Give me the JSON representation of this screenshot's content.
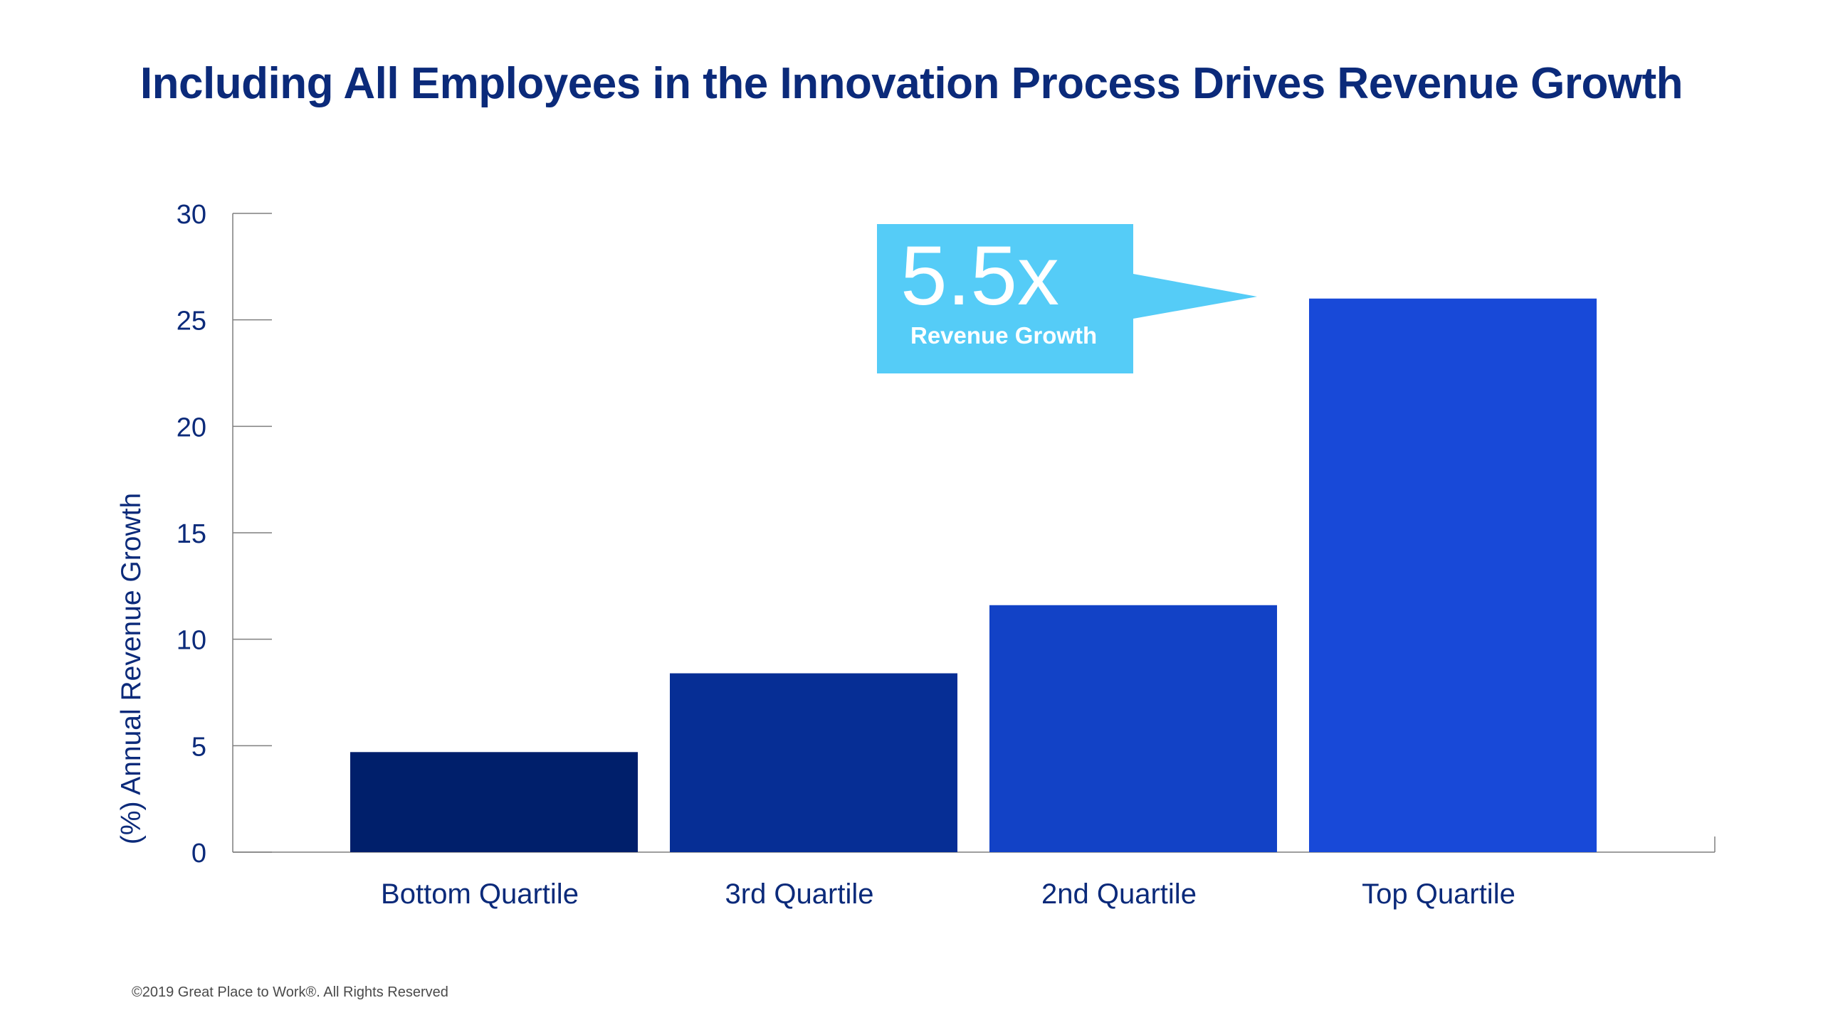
{
  "title": "Including All Employees in the Innovation Process Drives Revenue Growth",
  "footer": "©2019 Great Place to Work®. All Rights Reserved",
  "colors": {
    "title": "#0b2a7a",
    "axis_text": "#0b2a7a",
    "axis_line": "#7f7f7f",
    "callout_bg": "#55ccf7",
    "callout_text": "#ffffff"
  },
  "callout": {
    "big": "5.5x",
    "small": "Revenue Growth"
  },
  "chart_data": {
    "type": "bar",
    "title": "Including All Employees in the Innovation Process Drives Revenue Growth",
    "ylabel": "(%) Annual Revenue Growth",
    "xlabel": "",
    "ylim": [
      0,
      30
    ],
    "yticks": [
      0,
      5,
      10,
      15,
      20,
      25,
      30
    ],
    "categories": [
      "Bottom Quartile",
      "3rd Quartile",
      "2nd Quartile",
      "Top Quartile"
    ],
    "values": [
      4.7,
      8.4,
      11.6,
      26.0
    ],
    "bar_colors": [
      "#001f6b",
      "#062e95",
      "#1242c6",
      "#1849d8"
    ],
    "grid": false,
    "legend": "none",
    "annotation": "5.5x Revenue Growth"
  }
}
